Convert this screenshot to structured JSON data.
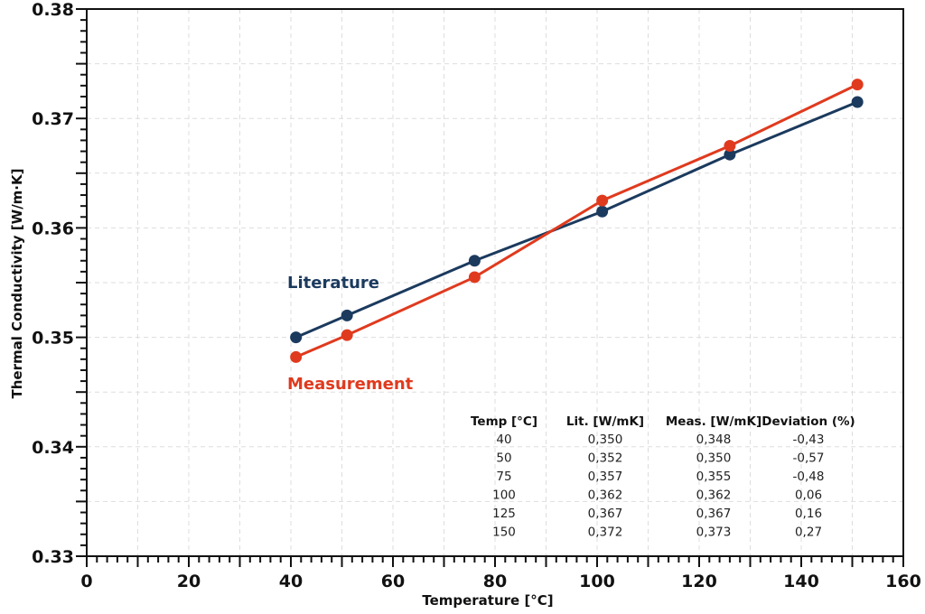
{
  "chart_data": {
    "type": "line",
    "xlabel": "Temperature [°C]",
    "ylabel": "Thermal Conductivity [W/m·K]",
    "xlim": [
      0,
      160
    ],
    "ylim": [
      0.33,
      0.38
    ],
    "xticks": [
      "0",
      "20",
      "40",
      "60",
      "80",
      "100",
      "120",
      "140",
      "160"
    ],
    "yticks": [
      "0.33",
      "0.34",
      "0.35",
      "0.36",
      "0.37",
      "0.38"
    ],
    "grid": true,
    "series": [
      {
        "name": "Literature",
        "color": "#1b3a5e",
        "x": [
          41,
          51,
          76,
          101,
          126,
          151
        ],
        "y": [
          0.35,
          0.352,
          0.357,
          0.3615,
          0.3667,
          0.3715
        ]
      },
      {
        "name": "Measurement",
        "color": "#e03a1e",
        "x": [
          41,
          51,
          76,
          101,
          126,
          151
        ],
        "y": [
          0.3482,
          0.3502,
          0.3555,
          0.3625,
          0.3675,
          0.3731
        ]
      }
    ],
    "table": {
      "headers": [
        "Temp [°C]",
        "Lit. [W/mK]",
        "Meas. [W/mK]",
        "Deviation (%)"
      ],
      "rows": [
        [
          "40",
          "0,350",
          "0,348",
          "-0,43"
        ],
        [
          "50",
          "0,352",
          "0,350",
          "-0,57"
        ],
        [
          "75",
          "0,357",
          "0,355",
          "-0,48"
        ],
        [
          "100",
          "0,362",
          "0,362",
          "0,06"
        ],
        [
          "125",
          "0,367",
          "0,367",
          "0,16"
        ],
        [
          "150",
          "0,372",
          "0,373",
          "0,27"
        ]
      ]
    }
  }
}
